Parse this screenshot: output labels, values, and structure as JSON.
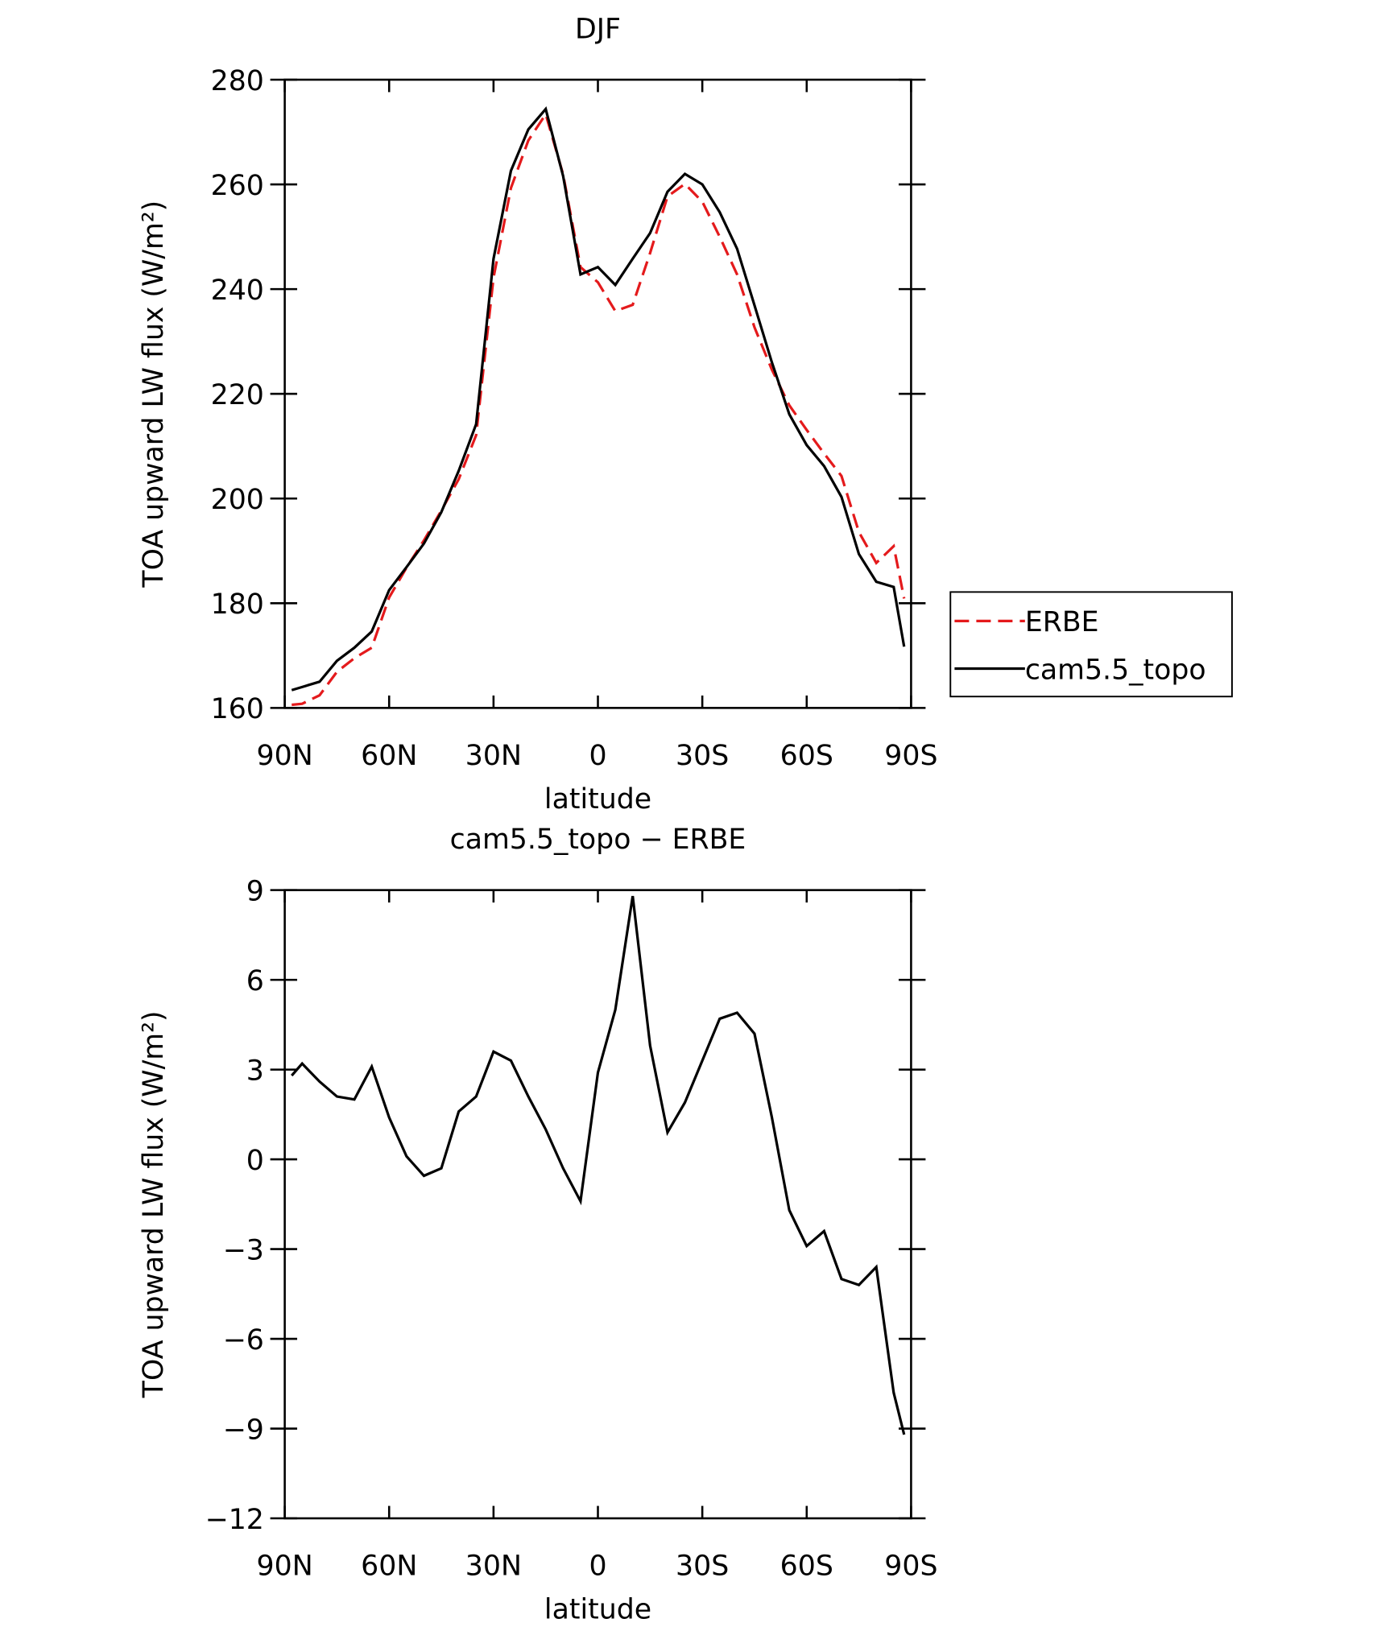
{
  "chart_data": [
    {
      "type": "line",
      "title": "DJF",
      "xlabel": "latitude",
      "ylabel": "TOA upward LW flux (W/m²)",
      "x": [
        88,
        85,
        80,
        75,
        70,
        65,
        60,
        55,
        50,
        45,
        40,
        35,
        30,
        25,
        20,
        15,
        10,
        5,
        0,
        -5,
        -10,
        -15,
        -20,
        -25,
        -30,
        -35,
        -40,
        -45,
        -50,
        -55,
        -60,
        -65,
        -70,
        -75,
        -80,
        -85,
        -88
      ],
      "series": [
        {
          "name": "ERBE",
          "color": "#e41a1c",
          "dash": true,
          "values": [
            160.6,
            160.8,
            162.4,
            166.9,
            169.5,
            171.5,
            181.1,
            186.8,
            192.0,
            197.7,
            203.7,
            212.1,
            242.2,
            259.3,
            268.4,
            273.4,
            261.9,
            244.2,
            241.3,
            235.8,
            237.0,
            246.9,
            257.7,
            260.1,
            256.7,
            250.0,
            242.8,
            232.7,
            224.6,
            217.8,
            213.1,
            208.6,
            204.3,
            193.6,
            187.7,
            190.9,
            180.9
          ]
        },
        {
          "name": "cam5.5_topo",
          "color": "#000000",
          "dash": false,
          "values": [
            163.4,
            164,
            165,
            169,
            171.5,
            174.6,
            182.5,
            186.9,
            191.4,
            197.4,
            205.3,
            214.2,
            245.8,
            262.6,
            270.5,
            274.4,
            261.6,
            242.8,
            244.2,
            240.8,
            245.8,
            250.7,
            258.6,
            262,
            260,
            254.7,
            247.7,
            236.9,
            226,
            216.1,
            210.2,
            206.2,
            200.3,
            189.4,
            184.1,
            183.1,
            171.7
          ]
        }
      ],
      "xlim": [
        90,
        -90
      ],
      "xticks": [
        {
          "value": 90,
          "label": "90N"
        },
        {
          "value": 60,
          "label": "60N"
        },
        {
          "value": 30,
          "label": "30N"
        },
        0,
        {
          "value": -30,
          "label": "30S"
        },
        {
          "value": -60,
          "label": "60S"
        },
        {
          "value": -90,
          "label": "90S"
        }
      ],
      "ylim": [
        160,
        280
      ],
      "yticks": [
        160,
        180,
        200,
        220,
        240,
        260,
        280
      ],
      "legend": "outside right"
    },
    {
      "type": "line",
      "title": "cam5.5_topo − ERBE",
      "xlabel": "latitude",
      "ylabel": "TOA upward LW flux (W/m²)",
      "x": [
        88,
        85,
        80,
        75,
        70,
        65,
        60,
        55,
        50,
        45,
        40,
        35,
        30,
        25,
        20,
        15,
        10,
        5,
        0,
        -5,
        -10,
        -15,
        -20,
        -25,
        -30,
        -35,
        -40,
        -45,
        -50,
        -55,
        -60,
        -65,
        -70,
        -75,
        -80,
        -85,
        -88
      ],
      "series": [
        {
          "color": "#000000",
          "dash": false,
          "values": [
            2.8,
            3.2,
            2.6,
            2.1,
            2.0,
            3.1,
            1.4,
            0.1,
            -0.55,
            -0.3,
            1.6,
            2.1,
            3.6,
            3.3,
            2.1,
            1.0,
            -0.3,
            -1.4,
            2.9,
            5.0,
            8.8,
            3.8,
            0.9,
            1.9,
            3.3,
            4.7,
            4.9,
            4.2,
            1.4,
            -1.7,
            -2.9,
            -2.4,
            -4.0,
            -4.2,
            -3.6,
            -7.8,
            -9.2
          ]
        }
      ],
      "xlim": [
        90,
        -90
      ],
      "xticks": [
        {
          "value": 90,
          "label": "90N"
        },
        {
          "value": 60,
          "label": "60N"
        },
        {
          "value": 30,
          "label": "30N"
        },
        0,
        {
          "value": -30,
          "label": "30S"
        },
        {
          "value": -60,
          "label": "60S"
        },
        {
          "value": -90,
          "label": "90S"
        }
      ],
      "ylim": [
        -12,
        9
      ],
      "yticks": [
        {
          "value": -12,
          "label": "−12"
        },
        {
          "value": -9,
          "label": "−9"
        },
        {
          "value": -6,
          "label": "−6"
        },
        {
          "value": -3,
          "label": "−3"
        },
        0,
        3,
        6,
        9
      ]
    }
  ]
}
